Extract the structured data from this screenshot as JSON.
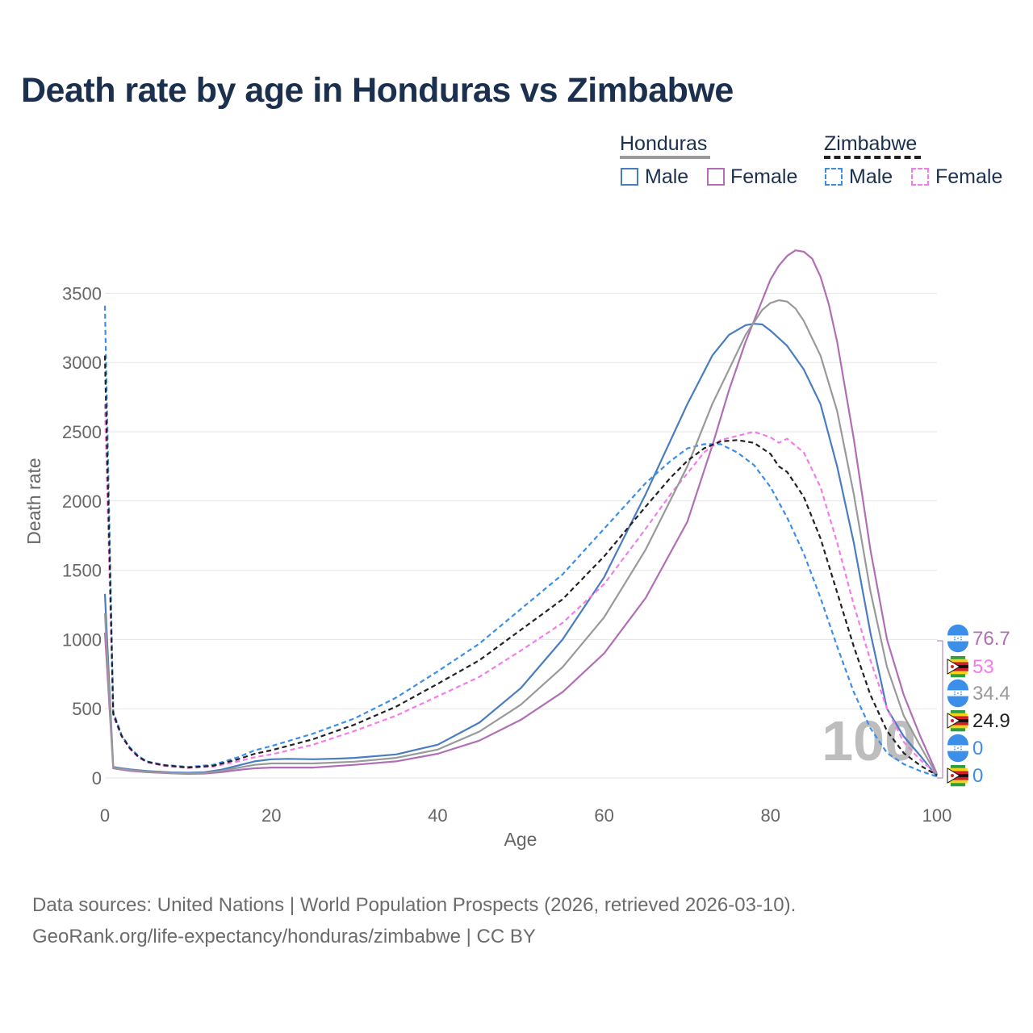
{
  "title": "Death rate by age in Honduras vs Zimbabwe",
  "legend": {
    "groups": [
      {
        "name": "Honduras",
        "line_style": "solid",
        "line_color": "#999999",
        "items": [
          {
            "label": "Male",
            "color": "#4a7cc0",
            "dash": false
          },
          {
            "label": "Female",
            "color": "#b06fb5",
            "dash": false
          }
        ]
      },
      {
        "name": "Zimbabwe",
        "line_style": "dashed",
        "line_color": "#222222",
        "items": [
          {
            "label": "Male",
            "color": "#3b8fe8",
            "dash": true
          },
          {
            "label": "Female",
            "color": "#f57be8",
            "dash": true
          }
        ]
      }
    ]
  },
  "chart_data": {
    "type": "line",
    "xlabel": "Age",
    "ylabel": "Death rate",
    "xlim": [
      0,
      100
    ],
    "ylim": [
      0,
      3800
    ],
    "xticks": [
      0,
      20,
      40,
      60,
      80,
      100
    ],
    "yticks": [
      0,
      500,
      1000,
      1500,
      2000,
      2500,
      3000,
      3500
    ],
    "grid": true,
    "watermark_age": "100",
    "series": [
      {
        "name": "Honduras Male",
        "color": "#4a7cc0",
        "dash": false,
        "width": 2.2,
        "points": [
          [
            0,
            1330
          ],
          [
            1,
            80
          ],
          [
            2,
            70
          ],
          [
            3,
            62
          ],
          [
            5,
            50
          ],
          [
            8,
            40
          ],
          [
            10,
            38
          ],
          [
            12,
            42
          ],
          [
            14,
            60
          ],
          [
            16,
            90
          ],
          [
            18,
            120
          ],
          [
            20,
            135
          ],
          [
            22,
            138
          ],
          [
            25,
            135
          ],
          [
            28,
            140
          ],
          [
            30,
            145
          ],
          [
            35,
            170
          ],
          [
            40,
            240
          ],
          [
            45,
            400
          ],
          [
            50,
            650
          ],
          [
            55,
            1000
          ],
          [
            60,
            1450
          ],
          [
            65,
            2050
          ],
          [
            70,
            2700
          ],
          [
            73,
            3050
          ],
          [
            75,
            3200
          ],
          [
            77,
            3270
          ],
          [
            78,
            3280
          ],
          [
            79,
            3275
          ],
          [
            80,
            3230
          ],
          [
            82,
            3120
          ],
          [
            84,
            2950
          ],
          [
            86,
            2700
          ],
          [
            88,
            2250
          ],
          [
            90,
            1700
          ],
          [
            92,
            1050
          ],
          [
            94,
            500
          ],
          [
            96,
            300
          ],
          [
            98,
            160
          ],
          [
            100,
            10
          ]
        ]
      },
      {
        "name": "Honduras Female",
        "color": "#b06fb5",
        "dash": false,
        "width": 2.2,
        "points": [
          [
            0,
            1050
          ],
          [
            1,
            70
          ],
          [
            2,
            60
          ],
          [
            3,
            52
          ],
          [
            5,
            42
          ],
          [
            8,
            33
          ],
          [
            10,
            30
          ],
          [
            12,
            32
          ],
          [
            14,
            42
          ],
          [
            16,
            58
          ],
          [
            18,
            70
          ],
          [
            20,
            75
          ],
          [
            25,
            75
          ],
          [
            30,
            95
          ],
          [
            35,
            120
          ],
          [
            40,
            175
          ],
          [
            45,
            270
          ],
          [
            50,
            420
          ],
          [
            55,
            620
          ],
          [
            60,
            900
          ],
          [
            65,
            1300
          ],
          [
            70,
            1850
          ],
          [
            73,
            2400
          ],
          [
            75,
            2800
          ],
          [
            77,
            3150
          ],
          [
            79,
            3450
          ],
          [
            80,
            3600
          ],
          [
            81,
            3700
          ],
          [
            82,
            3770
          ],
          [
            83,
            3810
          ],
          [
            84,
            3800
          ],
          [
            85,
            3750
          ],
          [
            86,
            3620
          ],
          [
            87,
            3420
          ],
          [
            88,
            3150
          ],
          [
            90,
            2450
          ],
          [
            92,
            1650
          ],
          [
            94,
            1000
          ],
          [
            96,
            600
          ],
          [
            98,
            300
          ],
          [
            100,
            30
          ]
        ]
      },
      {
        "name": "Zimbabwe Male",
        "color": "#3b8fe8",
        "dash": true,
        "width": 2.2,
        "points": [
          [
            0,
            3410
          ],
          [
            1,
            480
          ],
          [
            2,
            310
          ],
          [
            3,
            220
          ],
          [
            4,
            160
          ],
          [
            5,
            120
          ],
          [
            7,
            95
          ],
          [
            10,
            80
          ],
          [
            13,
            95
          ],
          [
            16,
            150
          ],
          [
            18,
            200
          ],
          [
            20,
            230
          ],
          [
            25,
            320
          ],
          [
            30,
            430
          ],
          [
            35,
            580
          ],
          [
            40,
            770
          ],
          [
            45,
            970
          ],
          [
            50,
            1220
          ],
          [
            55,
            1470
          ],
          [
            60,
            1800
          ],
          [
            65,
            2130
          ],
          [
            68,
            2290
          ],
          [
            70,
            2380
          ],
          [
            72,
            2410
          ],
          [
            74,
            2410
          ],
          [
            76,
            2350
          ],
          [
            78,
            2260
          ],
          [
            80,
            2100
          ],
          [
            82,
            1880
          ],
          [
            84,
            1620
          ],
          [
            86,
            1300
          ],
          [
            88,
            950
          ],
          [
            90,
            620
          ],
          [
            92,
            360
          ],
          [
            94,
            180
          ],
          [
            96,
            100
          ],
          [
            98,
            50
          ],
          [
            100,
            10
          ]
        ]
      },
      {
        "name": "Zimbabwe Female",
        "color": "#f57be8",
        "dash": true,
        "width": 2.2,
        "points": [
          [
            0,
            2700
          ],
          [
            1,
            450
          ],
          [
            2,
            300
          ],
          [
            3,
            210
          ],
          [
            4,
            150
          ],
          [
            5,
            115
          ],
          [
            7,
            88
          ],
          [
            10,
            72
          ],
          [
            13,
            82
          ],
          [
            16,
            120
          ],
          [
            18,
            150
          ],
          [
            20,
            170
          ],
          [
            25,
            240
          ],
          [
            30,
            340
          ],
          [
            35,
            450
          ],
          [
            40,
            590
          ],
          [
            45,
            730
          ],
          [
            50,
            920
          ],
          [
            55,
            1120
          ],
          [
            60,
            1400
          ],
          [
            65,
            1800
          ],
          [
            68,
            2050
          ],
          [
            70,
            2200
          ],
          [
            72,
            2350
          ],
          [
            74,
            2440
          ],
          [
            76,
            2470
          ],
          [
            78,
            2500
          ],
          [
            80,
            2460
          ],
          [
            81,
            2420
          ],
          [
            82,
            2450
          ],
          [
            84,
            2350
          ],
          [
            86,
            2100
          ],
          [
            88,
            1700
          ],
          [
            90,
            1250
          ],
          [
            92,
            850
          ],
          [
            94,
            500
          ],
          [
            96,
            260
          ],
          [
            98,
            130
          ],
          [
            100,
            30
          ]
        ]
      },
      {
        "name": "Honduras Total",
        "color": "#999999",
        "dash": false,
        "width": 2.2,
        "points": [
          [
            0,
            1190
          ],
          [
            1,
            75
          ],
          [
            2,
            65
          ],
          [
            3,
            57
          ],
          [
            5,
            46
          ],
          [
            8,
            36
          ],
          [
            10,
            34
          ],
          [
            12,
            37
          ],
          [
            14,
            51
          ],
          [
            16,
            74
          ],
          [
            18,
            95
          ],
          [
            20,
            105
          ],
          [
            25,
            105
          ],
          [
            30,
            118
          ],
          [
            35,
            145
          ],
          [
            40,
            205
          ],
          [
            45,
            335
          ],
          [
            50,
            530
          ],
          [
            55,
            800
          ],
          [
            60,
            1160
          ],
          [
            65,
            1650
          ],
          [
            70,
            2250
          ],
          [
            73,
            2700
          ],
          [
            75,
            2950
          ],
          [
            77,
            3200
          ],
          [
            79,
            3380
          ],
          [
            80,
            3430
          ],
          [
            81,
            3450
          ],
          [
            82,
            3440
          ],
          [
            83,
            3390
          ],
          [
            84,
            3300
          ],
          [
            86,
            3050
          ],
          [
            88,
            2650
          ],
          [
            90,
            2050
          ],
          [
            92,
            1350
          ],
          [
            94,
            800
          ],
          [
            96,
            450
          ],
          [
            98,
            230
          ],
          [
            100,
            20
          ]
        ]
      },
      {
        "name": "Zimbabwe Total",
        "color": "#222222",
        "dash": true,
        "width": 2.2,
        "points": [
          [
            0,
            3050
          ],
          [
            1,
            465
          ],
          [
            2,
            305
          ],
          [
            3,
            215
          ],
          [
            4,
            155
          ],
          [
            5,
            118
          ],
          [
            7,
            92
          ],
          [
            10,
            76
          ],
          [
            13,
            88
          ],
          [
            16,
            135
          ],
          [
            18,
            175
          ],
          [
            20,
            200
          ],
          [
            25,
            280
          ],
          [
            30,
            385
          ],
          [
            35,
            515
          ],
          [
            40,
            680
          ],
          [
            45,
            850
          ],
          [
            50,
            1070
          ],
          [
            55,
            1290
          ],
          [
            60,
            1600
          ],
          [
            65,
            1960
          ],
          [
            68,
            2170
          ],
          [
            70,
            2290
          ],
          [
            72,
            2380
          ],
          [
            74,
            2430
          ],
          [
            76,
            2440
          ],
          [
            78,
            2420
          ],
          [
            80,
            2340
          ],
          [
            81,
            2250
          ],
          [
            82,
            2210
          ],
          [
            84,
            2030
          ],
          [
            86,
            1730
          ],
          [
            88,
            1340
          ],
          [
            90,
            950
          ],
          [
            92,
            600
          ],
          [
            94,
            340
          ],
          [
            96,
            180
          ],
          [
            98,
            90
          ],
          [
            100,
            20
          ]
        ]
      }
    ],
    "end_labels": [
      {
        "value": "76.7",
        "color": "#b06fb5",
        "flag": "honduras-flag"
      },
      {
        "value": "53",
        "color": "#f57be8",
        "flag": "zimbabwe-flag"
      },
      {
        "value": "34.4",
        "color": "#999999",
        "flag": "honduras-flag"
      },
      {
        "value": "24.9",
        "color": "#222222",
        "flag": "zimbabwe-flag"
      },
      {
        "value": "0",
        "color": "#3b8fe8",
        "flag": "honduras-flag"
      },
      {
        "value": "0",
        "color": "#3b8fe8",
        "flag": "zimbabwe-flag"
      }
    ]
  },
  "source": {
    "line1": "Data sources: United Nations | World Population Prospects (2026, retrieved 2026-03-10).",
    "line2": "GeoRank.org/life-expectancy/honduras/zimbabwe | CC BY"
  }
}
